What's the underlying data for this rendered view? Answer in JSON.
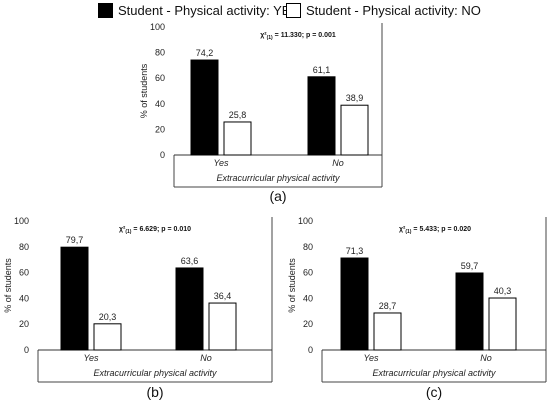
{
  "legend": [
    {
      "label": "Student - Physical activity: YES",
      "color": "#000000"
    },
    {
      "label": "Student - Physical activity: NO",
      "color": "#ffffff"
    }
  ],
  "chart_data": [
    {
      "type": "bar",
      "panel_label": "(a)",
      "stat_base": "χ²",
      "stat_sub": "(1)",
      "stat_rest": " = 11.330; p = 0.001",
      "categories": [
        "Yes",
        "No"
      ],
      "series": [
        {
          "name": "Student - Physical activity: YES",
          "values": [
            74.2,
            61.1
          ],
          "labels": [
            "74,2",
            "61,1"
          ],
          "color": "#000000"
        },
        {
          "name": "Student - Physical activity: NO",
          "values": [
            25.8,
            38.9
          ],
          "labels": [
            "25,8",
            "38,9"
          ],
          "color": "#ffffff"
        }
      ],
      "xlabel": "Extracurricular physical activity",
      "ylabel": "% of students",
      "ylim": [
        0,
        100
      ],
      "yticks": [
        "0",
        "20",
        "40",
        "60",
        "80",
        "100"
      ]
    },
    {
      "type": "bar",
      "panel_label": "(b)",
      "stat_base": "χ²",
      "stat_sub": "(1)",
      "stat_rest": " = 6.629; p = 0.010",
      "categories": [
        "Yes",
        "No"
      ],
      "series": [
        {
          "name": "Student - Physical activity: YES",
          "values": [
            79.7,
            63.6
          ],
          "labels": [
            "79,7",
            "63,6"
          ],
          "color": "#000000"
        },
        {
          "name": "Student - Physical activity: NO",
          "values": [
            20.3,
            36.4
          ],
          "labels": [
            "20,3",
            "36,4"
          ],
          "color": "#ffffff"
        }
      ],
      "xlabel": "Extracurricular physical activity",
      "ylabel": "% of students",
      "ylim": [
        0,
        100
      ],
      "yticks": [
        "0",
        "20",
        "40",
        "60",
        "80",
        "100"
      ]
    },
    {
      "type": "bar",
      "panel_label": "(c)",
      "stat_base": "χ²",
      "stat_sub": "(1)",
      "stat_rest": " = 5.433; p = 0.020",
      "categories": [
        "Yes",
        "No"
      ],
      "series": [
        {
          "name": "Student - Physical activity: YES",
          "values": [
            71.3,
            59.7
          ],
          "labels": [
            "71,3",
            "59,7"
          ],
          "color": "#000000"
        },
        {
          "name": "Student - Physical activity: NO",
          "values": [
            28.7,
            40.3
          ],
          "labels": [
            "28,7",
            "40,3"
          ],
          "color": "#ffffff"
        }
      ],
      "xlabel": "Extracurricular physical activity",
      "ylabel": "% of students",
      "ylim": [
        0,
        100
      ],
      "yticks": [
        "0",
        "20",
        "40",
        "60",
        "80",
        "100"
      ]
    }
  ]
}
